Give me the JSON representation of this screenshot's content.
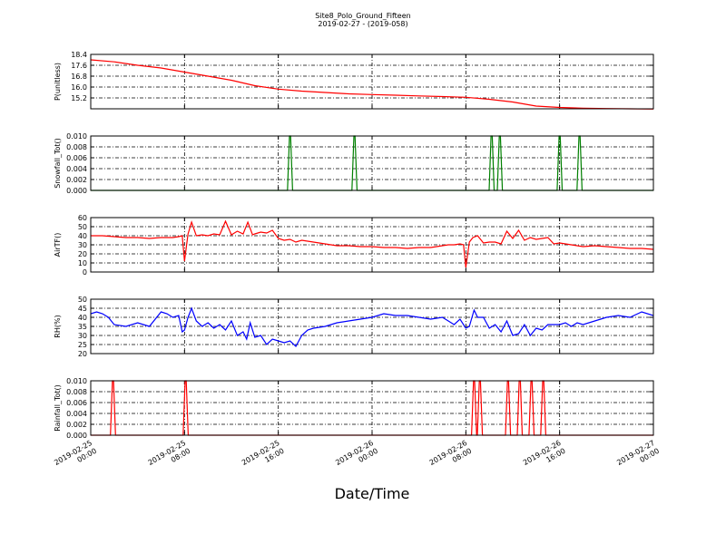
{
  "chart_data": {
    "type": "line",
    "title": "Site8_Polo_Ground_Fifteen",
    "subtitle": "2019-02-27 - (2019-058)",
    "xlabel": "Date/Time",
    "x_range": [
      "2019-02-25 00:00",
      "2019-02-27 00:00"
    ],
    "x_ticks": [
      {
        "hour": 0,
        "line1": "2019-02-25",
        "line2": "00:00"
      },
      {
        "hour": 8,
        "line1": "2019-02-25",
        "line2": "08:00"
      },
      {
        "hour": 16,
        "line1": "2019-02-25",
        "line2": "16:00"
      },
      {
        "hour": 24,
        "line1": "2019-02-26",
        "line2": "00:00"
      },
      {
        "hour": 32,
        "line1": "2019-02-26",
        "line2": "08:00"
      },
      {
        "hour": 40,
        "line1": "2019-02-26",
        "line2": "16:00"
      },
      {
        "hour": 48,
        "line1": "2019-02-27",
        "line2": "00:00"
      }
    ],
    "grid": true,
    "panels": [
      {
        "ylabel": "P(unitless)",
        "ylim": [
          14.4,
          18.4
        ],
        "yticks": [
          "15.2",
          "16.0",
          "16.8",
          "17.6",
          "18.4"
        ],
        "color": "#ff0000",
        "x": [
          0,
          2,
          4,
          6,
          8,
          10,
          12,
          14,
          16,
          18,
          20,
          22,
          24,
          26,
          28,
          30,
          32,
          34,
          36,
          38,
          40,
          42,
          44,
          46,
          48
        ],
        "y": [
          18.0,
          17.85,
          17.6,
          17.4,
          17.1,
          16.8,
          16.5,
          16.1,
          15.85,
          15.7,
          15.6,
          15.5,
          15.45,
          15.4,
          15.35,
          15.3,
          15.25,
          15.1,
          14.9,
          14.6,
          14.5,
          14.45,
          14.42,
          14.4,
          14.38
        ]
      },
      {
        "ylabel": "Snowfall_Tot()",
        "ylim": [
          0,
          0.01
        ],
        "yticks": [
          "0.000",
          "0.002",
          "0.004",
          "0.006",
          "0.008",
          "0.010"
        ],
        "color": "#008000",
        "baseline": 0,
        "spikes": [
          {
            "x": 17.0,
            "value": 0.01
          },
          {
            "x": 22.5,
            "value": 0.01
          },
          {
            "x": 34.2,
            "value": 0.01
          },
          {
            "x": 34.9,
            "value": 0.01
          },
          {
            "x": 40.0,
            "value": 0.01
          },
          {
            "x": 41.7,
            "value": 0.01
          }
        ]
      },
      {
        "ylabel": "AirTF()",
        "ylim": [
          0,
          60
        ],
        "yticks": [
          "0",
          "10",
          "20",
          "30",
          "40",
          "50",
          "60"
        ],
        "color": "#ff0000",
        "x": [
          0,
          1,
          2,
          3,
          4,
          5,
          6,
          7,
          7.5,
          7.8,
          8,
          8.3,
          8.6,
          9,
          9.5,
          10,
          10.5,
          11,
          11.5,
          12,
          12.5,
          13,
          13.4,
          13.8,
          14,
          14.5,
          15,
          15.5,
          16,
          16.5,
          17,
          17.5,
          18,
          19,
          20,
          21,
          22,
          23,
          24,
          25,
          26,
          27,
          28,
          29,
          30,
          30.5,
          31,
          31.5,
          31.8,
          32,
          32.3,
          32.6,
          33,
          33.5,
          34,
          34.5,
          35,
          35.5,
          36,
          36.5,
          37,
          37.5,
          38,
          38.5,
          39,
          39.5,
          40,
          40.5,
          41,
          42,
          43,
          44,
          45,
          46,
          47,
          48
        ],
        "y": [
          40,
          40,
          39,
          38,
          38,
          37,
          38,
          38,
          39,
          40,
          12,
          42,
          55,
          40,
          41,
          40,
          42,
          41,
          56,
          41,
          45,
          42,
          55,
          41,
          42,
          44,
          43,
          46,
          37,
          35,
          36,
          33,
          35,
          33,
          31,
          29,
          29,
          28,
          28,
          27,
          27,
          26,
          27,
          27,
          29,
          30,
          30,
          31,
          30,
          5,
          33,
          38,
          40,
          32,
          33,
          33,
          31,
          45,
          37,
          46,
          35,
          38,
          36,
          37,
          38,
          31,
          32,
          31,
          30,
          28,
          29,
          28,
          27,
          26,
          26,
          25
        ]
      },
      {
        "ylabel": "RH(%)",
        "ylim": [
          20,
          50
        ],
        "yticks": [
          "20",
          "25",
          "30",
          "35",
          "40",
          "45",
          "50"
        ],
        "color": "#0000ff",
        "x": [
          0,
          0.5,
          1,
          1.5,
          2,
          3,
          4,
          5,
          6,
          6.5,
          7,
          7.5,
          7.8,
          8,
          8.3,
          8.6,
          9,
          9.5,
          10,
          10.5,
          11,
          11.5,
          12,
          12.5,
          13,
          13.3,
          13.6,
          14,
          14.5,
          15,
          15.5,
          16,
          16.5,
          17,
          17.5,
          18,
          18.5,
          19,
          20,
          21,
          22,
          23,
          24,
          25,
          26,
          27,
          28,
          29,
          30,
          30.5,
          31,
          31.5,
          32,
          32.3,
          32.7,
          33,
          33.5,
          34,
          34.5,
          35,
          35.5,
          36,
          36.5,
          37,
          37.5,
          38,
          38.5,
          39,
          40,
          40.5,
          41,
          41.5,
          42,
          43,
          44,
          45,
          46,
          47,
          48
        ],
        "y": [
          42,
          43,
          42,
          40,
          36,
          35,
          37,
          35,
          43,
          42,
          40,
          41,
          32,
          33,
          40,
          45,
          38,
          35,
          37,
          34,
          36,
          33,
          38,
          30,
          32,
          28,
          37,
          29,
          30,
          25,
          28,
          27,
          26,
          27,
          24,
          30,
          33,
          34,
          35,
          37,
          38,
          39,
          40,
          42,
          41,
          41,
          40,
          39,
          40,
          38,
          36,
          39,
          34,
          35,
          44,
          40,
          40,
          34,
          36,
          32,
          38,
          30,
          31,
          36,
          30,
          34,
          33,
          36,
          36,
          37,
          35,
          37,
          36,
          38,
          40,
          41,
          40,
          43,
          41
        ]
      },
      {
        "ylabel": "Rainfall_Tot()",
        "ylim": [
          0,
          0.01
        ],
        "yticks": [
          "0.000",
          "0.002",
          "0.004",
          "0.006",
          "0.008",
          "0.010"
        ],
        "color": "#ff0000",
        "baseline": 0,
        "spikes": [
          {
            "x": 1.9,
            "value": 0.01
          },
          {
            "x": 8.1,
            "value": 0.01
          },
          {
            "x": 32.7,
            "value": 0.01
          },
          {
            "x": 33.2,
            "value": 0.01
          },
          {
            "x": 35.6,
            "value": 0.01
          },
          {
            "x": 36.6,
            "value": 0.01
          },
          {
            "x": 37.6,
            "value": 0.01
          },
          {
            "x": 38.6,
            "value": 0.01
          }
        ]
      }
    ]
  }
}
